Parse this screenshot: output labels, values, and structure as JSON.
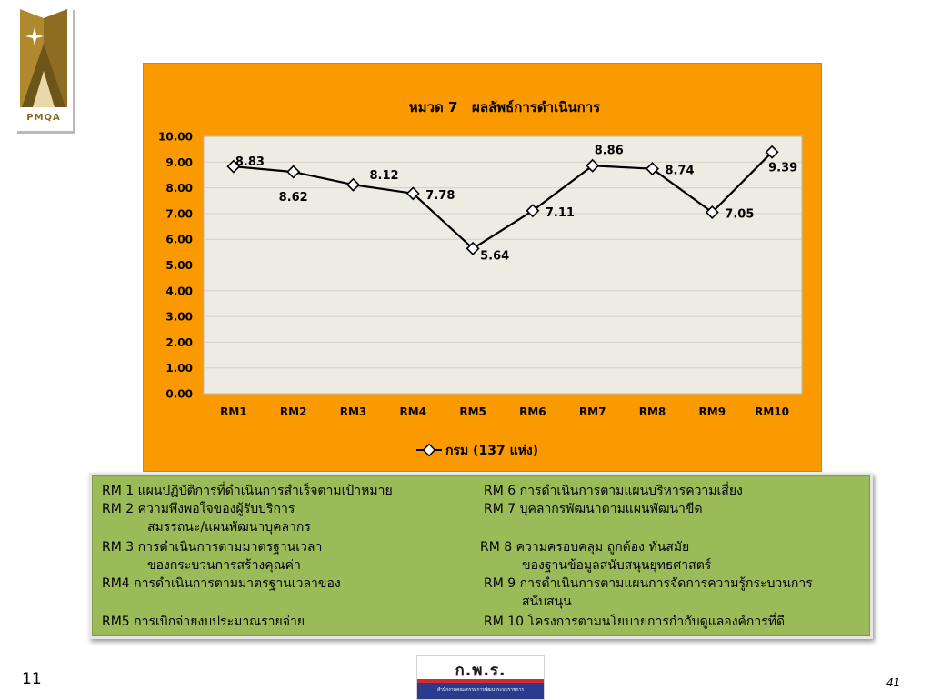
{
  "logo": {
    "text": "PMQA",
    "colors": {
      "gold": "#b0892f",
      "dark": "#6b5518"
    }
  },
  "chart_data": {
    "type": "line",
    "title": "หมวด 7   ผลลัพธ์การดำเนินการ",
    "categories": [
      "RM1",
      "RM2",
      "RM3",
      "RM4",
      "RM5",
      "RM6",
      "RM7",
      "RM8",
      "RM9",
      "RM10"
    ],
    "series": [
      {
        "name": "กรม (137 แห่ง)",
        "values": [
          8.83,
          8.62,
          8.12,
          7.78,
          5.64,
          7.11,
          8.86,
          8.74,
          7.05,
          9.39
        ]
      }
    ],
    "data_labels": [
      "8.83",
      "8.62",
      "8.12",
      "7.78",
      "5.64",
      "7.11",
      "8.86",
      "8.74",
      "7.05",
      "9.39"
    ],
    "yticks": [
      "0.00",
      "1.00",
      "2.00",
      "3.00",
      "4.00",
      "5.00",
      "6.00",
      "7.00",
      "8.00",
      "9.00",
      "10.00"
    ],
    "ylim": [
      0,
      10
    ],
    "grid": true,
    "legend_position": "bottom",
    "colors": {
      "background": "#fb9a00",
      "plot_area": "#eeebe3",
      "line": "#000000",
      "marker_fill": "#ffffff"
    }
  },
  "rm_legend": {
    "left": [
      "RM 1 แผนปฏิบัติการที่ดำเนินการสำเร็จตามเป้าหมาย",
      "RM 2 ความพึงพอใจของผู้รับบริการ",
      "สมรรถนะ/แผนพัฒนาบุคลากร",
      "RM 3 การดำเนินการตามมาตรฐานเวลา",
      "ของกระบวนการสร้างคุณค่า",
      "RM4 การดำเนินการตามมาตรฐานเวลาของ",
      "RM5 การเบิกจ่ายงบประมาณรายจ่าย"
    ],
    "right": [
      "RM 6 การดำเนินการตามแผนบริหารความเสี่ยง",
      "RM 7 บุคลากรพัฒนาตามแผนพัฒนาขีด",
      "RM 8 ความครอบคลุม ถูกต้อง ทันสมัย",
      "ของฐานข้อมูลสนับสนุนยุทธศาสตร์",
      "RM 9 การดำเนินการตามแผนการจัดการความรู้กระบวนการ",
      "สนับสนุน",
      "RM 10 โครงการตามนโยบายการกำกับดูแลองค์การที่ดี"
    ],
    "background": "#9bbb59"
  },
  "footer": {
    "slide_number": "11",
    "page_number": "41",
    "office_logo_text": "ก.พ.ร.",
    "office_logo_sub": "สำนักงานคณะกรรมการพัฒนาระบบราชการ"
  }
}
